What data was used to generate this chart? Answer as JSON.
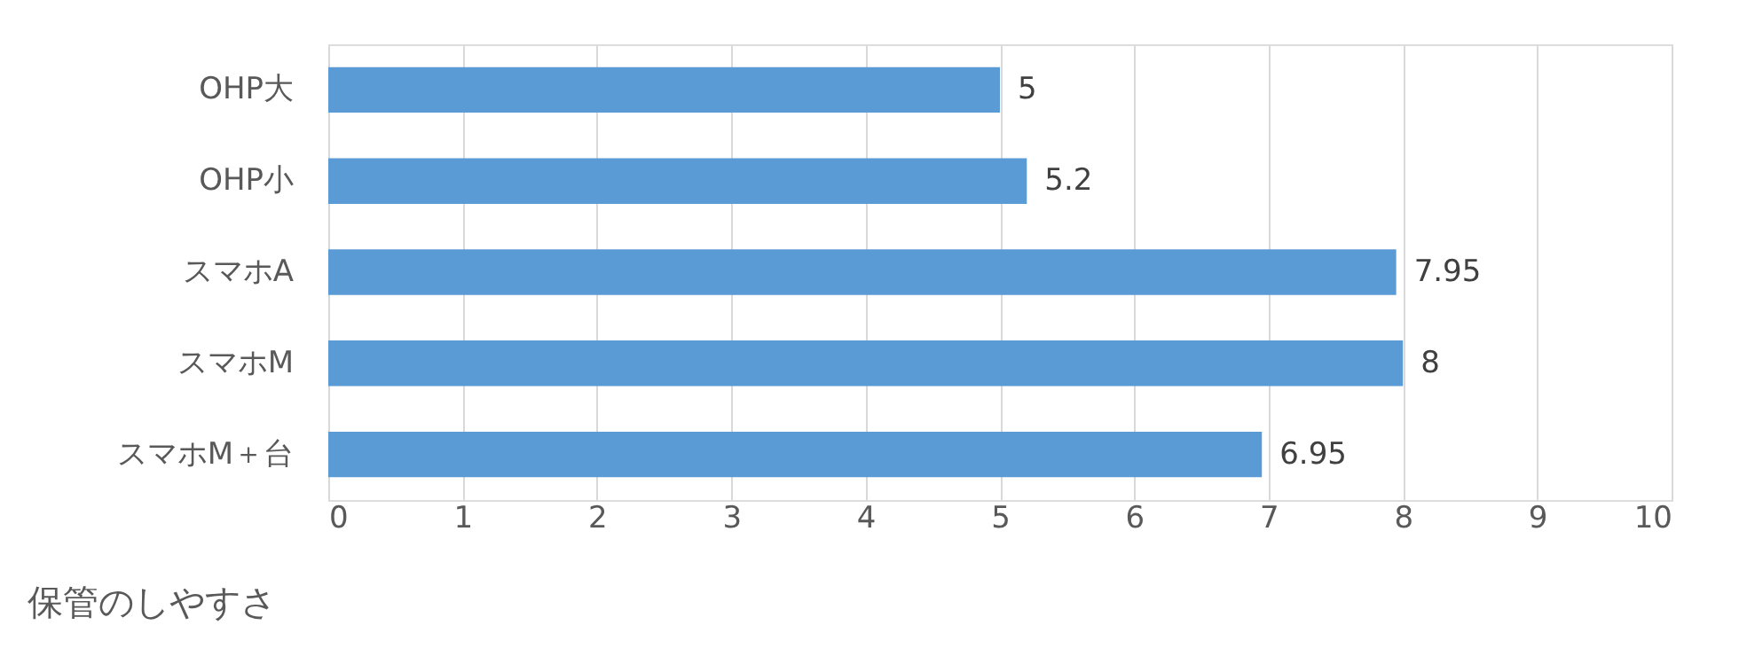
{
  "chart_data": {
    "type": "bar",
    "orientation": "horizontal",
    "categories": [
      "OHP大",
      "OHP小",
      "スマホA",
      "スマホM",
      "スマホM＋台"
    ],
    "values": [
      5,
      5.2,
      7.95,
      8,
      6.95
    ],
    "color": "#5b9bd5",
    "xlabel": "保管のしやすさ",
    "xlim": [
      0,
      10
    ],
    "xticks": [
      0,
      1,
      2,
      3,
      4,
      5,
      6,
      7,
      8,
      9,
      10
    ],
    "grid": "x",
    "data_labels": true
  }
}
